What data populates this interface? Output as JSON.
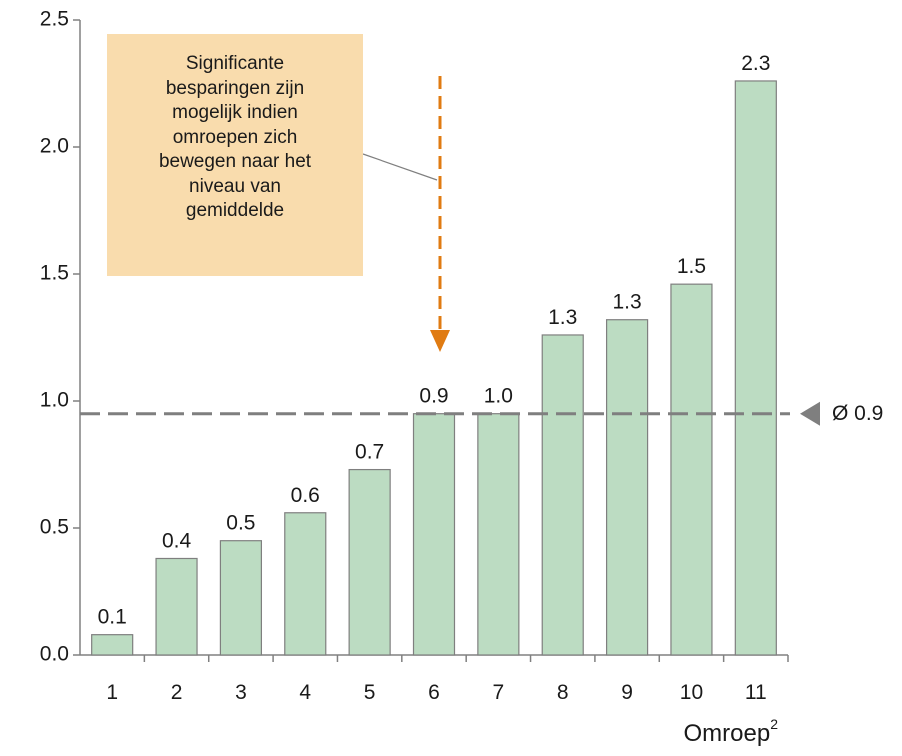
{
  "chart_data": {
    "type": "bar",
    "categories": [
      "1",
      "2",
      "3",
      "4",
      "5",
      "6",
      "7",
      "8",
      "9",
      "10",
      "11"
    ],
    "values": [
      0.08,
      0.38,
      0.45,
      0.56,
      0.73,
      0.95,
      0.95,
      1.26,
      1.32,
      1.46,
      2.26
    ],
    "data_labels": [
      "0.1",
      "0.4",
      "0.5",
      "0.6",
      "0.7",
      "0.9",
      "1.0",
      "1.3",
      "1.3",
      "1.5",
      "2.3"
    ],
    "ylim": [
      0,
      2.5
    ],
    "y_ticks": [
      "0.0",
      "0.5",
      "1.0",
      "1.5",
      "2.0",
      "2.5"
    ],
    "y_tick_values": [
      0,
      0.5,
      1.0,
      1.5,
      2.0,
      2.5
    ],
    "xlabel": "Omroep",
    "xlabel_sup": "2",
    "average": {
      "value": 0.95,
      "label": "Ø 0.9"
    },
    "bar_color": "#bcdcc2",
    "bar_stroke": "#7f7f7f",
    "average_line_color": "#7f7f7f",
    "arrow_color": "#e07b12",
    "grid": false,
    "legend": "none"
  },
  "callout": {
    "lines": [
      "Significante",
      "besparingen zijn",
      "mogelijk indien",
      "omroepen zich",
      "bewegen naar het",
      "niveau van",
      "gemiddelde"
    ],
    "background": "#f9dcad"
  }
}
